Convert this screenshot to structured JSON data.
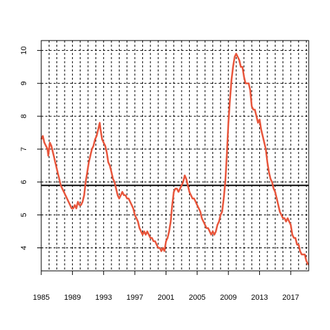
{
  "chart_data": {
    "type": "line",
    "title": "",
    "xlabel": "",
    "ylabel": "",
    "xlim": [
      1985,
      2019.3
    ],
    "ylim": [
      3.3,
      10.3
    ],
    "x_ticks": [
      1985,
      1989,
      1993,
      1997,
      2001,
      2005,
      2009,
      2013,
      2017
    ],
    "x_tick_labels": [
      "1985",
      "1989",
      "1993",
      "1997",
      "2001",
      "2005",
      "2009",
      "2013",
      "2017"
    ],
    "y_ticks": [
      4,
      5,
      6,
      7,
      8,
      9,
      10
    ],
    "y_tick_labels": [
      "4",
      "5",
      "6",
      "7",
      "8",
      "9",
      "10"
    ],
    "grid": true,
    "reference_line": {
      "y": 5.9,
      "color": "#000000"
    },
    "series": [
      {
        "color": "#e8553b",
        "points": [
          [
            1985.0,
            7.3
          ],
          [
            1985.2,
            7.4
          ],
          [
            1985.4,
            7.2
          ],
          [
            1985.6,
            7.1
          ],
          [
            1985.8,
            7.0
          ],
          [
            1985.9,
            6.8
          ],
          [
            1986.1,
            7.2
          ],
          [
            1986.3,
            7.1
          ],
          [
            1986.5,
            6.9
          ],
          [
            1986.7,
            6.7
          ],
          [
            1986.9,
            6.5
          ],
          [
            1987.1,
            6.3
          ],
          [
            1987.3,
            6.1
          ],
          [
            1987.5,
            5.9
          ],
          [
            1987.7,
            5.8
          ],
          [
            1987.9,
            5.7
          ],
          [
            1988.1,
            5.6
          ],
          [
            1988.3,
            5.5
          ],
          [
            1988.5,
            5.4
          ],
          [
            1988.7,
            5.3
          ],
          [
            1988.9,
            5.2
          ],
          [
            1989.1,
            5.2
          ],
          [
            1989.3,
            5.3
          ],
          [
            1989.5,
            5.2
          ],
          [
            1989.7,
            5.4
          ],
          [
            1989.9,
            5.3
          ],
          [
            1990.1,
            5.3
          ],
          [
            1990.3,
            5.4
          ],
          [
            1990.5,
            5.6
          ],
          [
            1990.7,
            6.0
          ],
          [
            1990.9,
            6.3
          ],
          [
            1991.1,
            6.6
          ],
          [
            1991.3,
            6.8
          ],
          [
            1991.5,
            7.0
          ],
          [
            1991.7,
            7.1
          ],
          [
            1991.9,
            7.3
          ],
          [
            1992.1,
            7.4
          ],
          [
            1992.3,
            7.6
          ],
          [
            1992.5,
            7.8
          ],
          [
            1992.6,
            7.6
          ],
          [
            1992.8,
            7.3
          ],
          [
            1993.0,
            7.2
          ],
          [
            1993.2,
            7.1
          ],
          [
            1993.4,
            6.9
          ],
          [
            1993.6,
            6.6
          ],
          [
            1993.8,
            6.5
          ],
          [
            1994.0,
            6.3
          ],
          [
            1994.2,
            6.1
          ],
          [
            1994.4,
            6.0
          ],
          [
            1994.6,
            5.8
          ],
          [
            1994.8,
            5.6
          ],
          [
            1995.0,
            5.5
          ],
          [
            1995.2,
            5.6
          ],
          [
            1995.4,
            5.7
          ],
          [
            1995.6,
            5.6
          ],
          [
            1995.8,
            5.6
          ],
          [
            1996.0,
            5.5
          ],
          [
            1996.2,
            5.5
          ],
          [
            1996.4,
            5.4
          ],
          [
            1996.6,
            5.3
          ],
          [
            1996.8,
            5.2
          ],
          [
            1997.0,
            5.0
          ],
          [
            1997.2,
            4.9
          ],
          [
            1997.4,
            4.8
          ],
          [
            1997.6,
            4.6
          ],
          [
            1997.8,
            4.5
          ],
          [
            1998.0,
            4.4
          ],
          [
            1998.2,
            4.5
          ],
          [
            1998.4,
            4.4
          ],
          [
            1998.6,
            4.5
          ],
          [
            1998.8,
            4.4
          ],
          [
            1999.0,
            4.3
          ],
          [
            1999.2,
            4.3
          ],
          [
            1999.4,
            4.2
          ],
          [
            1999.6,
            4.2
          ],
          [
            1999.8,
            4.1
          ],
          [
            2000.0,
            4.0
          ],
          [
            2000.2,
            4.0
          ],
          [
            2000.4,
            3.9
          ],
          [
            2000.6,
            4.0
          ],
          [
            2000.8,
            3.9
          ],
          [
            2001.0,
            4.2
          ],
          [
            2001.2,
            4.3
          ],
          [
            2001.4,
            4.5
          ],
          [
            2001.6,
            4.8
          ],
          [
            2001.8,
            5.3
          ],
          [
            2002.0,
            5.7
          ],
          [
            2002.2,
            5.8
          ],
          [
            2002.4,
            5.8
          ],
          [
            2002.6,
            5.7
          ],
          [
            2002.8,
            5.8
          ],
          [
            2003.0,
            5.9
          ],
          [
            2003.2,
            6.0
          ],
          [
            2003.4,
            6.2
          ],
          [
            2003.6,
            6.1
          ],
          [
            2003.8,
            5.9
          ],
          [
            2004.0,
            5.7
          ],
          [
            2004.2,
            5.6
          ],
          [
            2004.4,
            5.5
          ],
          [
            2004.6,
            5.5
          ],
          [
            2004.8,
            5.4
          ],
          [
            2005.0,
            5.3
          ],
          [
            2005.2,
            5.2
          ],
          [
            2005.4,
            5.1
          ],
          [
            2005.6,
            4.9
          ],
          [
            2005.8,
            4.8
          ],
          [
            2006.0,
            4.7
          ],
          [
            2006.2,
            4.6
          ],
          [
            2006.4,
            4.6
          ],
          [
            2006.6,
            4.5
          ],
          [
            2006.8,
            4.4
          ],
          [
            2007.0,
            4.5
          ],
          [
            2007.2,
            4.4
          ],
          [
            2007.4,
            4.5
          ],
          [
            2007.6,
            4.7
          ],
          [
            2007.8,
            4.8
          ],
          [
            2008.0,
            5.0
          ],
          [
            2008.2,
            5.1
          ],
          [
            2008.4,
            5.5
          ],
          [
            2008.6,
            6.0
          ],
          [
            2008.8,
            6.8
          ],
          [
            2009.0,
            7.8
          ],
          [
            2009.2,
            8.5
          ],
          [
            2009.4,
            9.1
          ],
          [
            2009.6,
            9.5
          ],
          [
            2009.8,
            9.8
          ],
          [
            2010.0,
            9.9
          ],
          [
            2010.2,
            9.8
          ],
          [
            2010.4,
            9.7
          ],
          [
            2010.6,
            9.5
          ],
          [
            2010.8,
            9.5
          ],
          [
            2011.0,
            9.2
          ],
          [
            2011.2,
            9.0
          ],
          [
            2011.4,
            9.0
          ],
          [
            2011.6,
            9.0
          ],
          [
            2011.8,
            8.8
          ],
          [
            2012.0,
            8.3
          ],
          [
            2012.2,
            8.2
          ],
          [
            2012.4,
            8.2
          ],
          [
            2012.6,
            8.0
          ],
          [
            2012.8,
            7.8
          ],
          [
            2013.0,
            7.9
          ],
          [
            2013.2,
            7.6
          ],
          [
            2013.4,
            7.4
          ],
          [
            2013.6,
            7.2
          ],
          [
            2013.8,
            7.0
          ],
          [
            2014.0,
            6.6
          ],
          [
            2014.2,
            6.3
          ],
          [
            2014.4,
            6.1
          ],
          [
            2014.6,
            6.0
          ],
          [
            2014.8,
            5.8
          ],
          [
            2015.0,
            5.7
          ],
          [
            2015.2,
            5.5
          ],
          [
            2015.4,
            5.3
          ],
          [
            2015.6,
            5.1
          ],
          [
            2015.8,
            5.0
          ],
          [
            2016.0,
            4.9
          ],
          [
            2016.2,
            4.9
          ],
          [
            2016.4,
            4.8
          ],
          [
            2016.6,
            4.9
          ],
          [
            2016.8,
            4.8
          ],
          [
            2017.0,
            4.7
          ],
          [
            2017.2,
            4.4
          ],
          [
            2017.4,
            4.3
          ],
          [
            2017.6,
            4.3
          ],
          [
            2017.8,
            4.1
          ],
          [
            2018.0,
            4.1
          ],
          [
            2018.2,
            3.9
          ],
          [
            2018.4,
            3.8
          ],
          [
            2018.6,
            3.8
          ],
          [
            2018.8,
            3.8
          ],
          [
            2019.0,
            3.6
          ],
          [
            2019.2,
            3.5
          ],
          [
            2019.3,
            3.5
          ]
        ]
      }
    ]
  }
}
